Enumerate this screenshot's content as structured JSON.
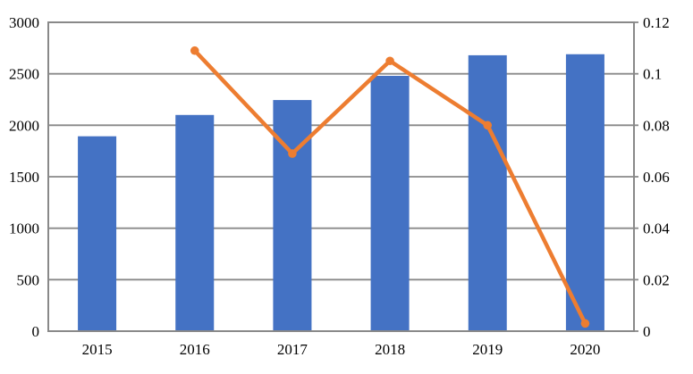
{
  "canvas": {
    "background": "#FFFFFF"
  },
  "chart_data": {
    "type": "bar",
    "subtype": "combo-bar-line",
    "title": "",
    "xlabel": "",
    "ylabel_left": "",
    "ylabel_right": "",
    "legend": "none",
    "grid": "horizontal",
    "categories": [
      "2015",
      "2016",
      "2017",
      "2018",
      "2019",
      "2020"
    ],
    "series": [
      {
        "name": "value-bars",
        "type": "bar",
        "axis": "left",
        "color": "#4472C4",
        "values": [
          1893,
          2100,
          2245,
          2480,
          2680,
          2690
        ]
      },
      {
        "name": "growth-rate-line",
        "type": "line",
        "axis": "right",
        "color": "#ED7D31",
        "marker": "circle",
        "values": [
          null,
          0.109,
          0.069,
          0.105,
          0.08,
          0.003
        ]
      }
    ],
    "left_axis": {
      "min": 0,
      "max": 3000,
      "step": 500,
      "tick_labels": [
        "0",
        "500",
        "1000",
        "1500",
        "2000",
        "2500",
        "3000"
      ]
    },
    "right_axis": {
      "min": 0,
      "max": 0.12,
      "step": 0.02,
      "tick_labels": [
        "0",
        "0.02",
        "0.04",
        "0.06",
        "0.08",
        "0.1",
        "0.12"
      ]
    },
    "colors": {
      "gridline": "#898989",
      "axis_border": "#898989",
      "text": "#000000",
      "background": "#FFFFFF"
    }
  }
}
